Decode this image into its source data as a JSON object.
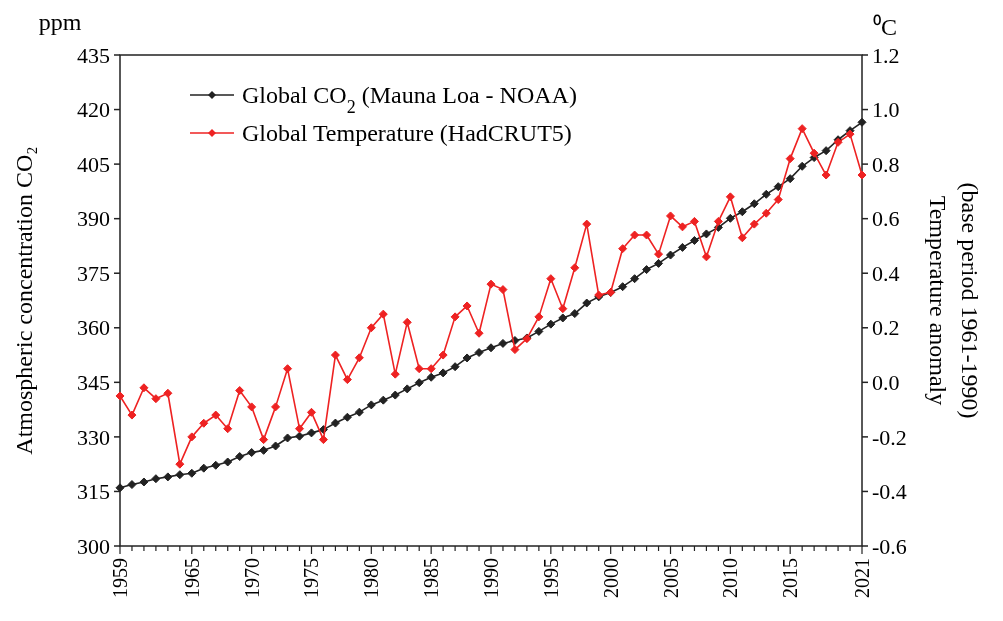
{
  "chart_data": {
    "type": "line",
    "xlabel": null,
    "ylabel": "Atmospheric concentration CO₂",
    "y2label": "Temperature anomaly\n(base period 1961-1990)",
    "annotations": [
      "ppm",
      "⁰C"
    ],
    "x": [
      1959,
      1960,
      1961,
      1962,
      1963,
      1964,
      1965,
      1966,
      1967,
      1968,
      1969,
      1970,
      1971,
      1972,
      1973,
      1974,
      1975,
      1976,
      1977,
      1978,
      1979,
      1980,
      1981,
      1982,
      1983,
      1984,
      1985,
      1986,
      1987,
      1988,
      1989,
      1990,
      1991,
      1992,
      1993,
      1994,
      1995,
      1996,
      1997,
      1998,
      1999,
      2000,
      2001,
      2002,
      2003,
      2004,
      2005,
      2006,
      2007,
      2008,
      2009,
      2010,
      2011,
      2012,
      2013,
      2014,
      2015,
      2016,
      2017,
      2018,
      2019,
      2020,
      2021
    ],
    "series": [
      {
        "name": "Global CO$_{2}$ (Mauna Loa - NOAA)",
        "color": "#222222",
        "values": [
          316.0,
          316.9,
          317.6,
          318.5,
          319.0,
          319.6,
          320.0,
          321.4,
          322.2,
          323.1,
          324.6,
          325.7,
          326.3,
          327.5,
          329.7,
          330.2,
          331.1,
          332.0,
          333.8,
          335.4,
          336.8,
          338.8,
          340.1,
          341.5,
          343.2,
          344.9,
          346.4,
          347.6,
          349.3,
          351.7,
          353.2,
          354.5,
          355.7,
          356.5,
          357.2,
          359.0,
          361.0,
          362.7,
          363.9,
          366.8,
          368.5,
          369.7,
          371.3,
          373.5,
          376.0,
          377.7,
          380.0,
          382.1,
          384.0,
          385.8,
          387.6,
          390.1,
          391.9,
          394.1,
          396.7,
          398.8,
          401.0,
          404.4,
          406.8,
          408.7,
          411.7,
          414.2,
          416.5
        ]
      },
      {
        "name": "Global Temperature (HadCRUT5)",
        "color": "#ee2222",
        "axis": "y2",
        "values": [
          -0.05,
          -0.12,
          -0.02,
          -0.06,
          -0.04,
          -0.3,
          -0.2,
          -0.15,
          -0.12,
          -0.17,
          -0.03,
          -0.09,
          -0.21,
          -0.09,
          0.05,
          -0.17,
          -0.11,
          -0.21,
          0.1,
          0.01,
          0.09,
          0.2,
          0.25,
          0.03,
          0.22,
          0.05,
          0.05,
          0.1,
          0.24,
          0.28,
          0.18,
          0.36,
          0.34,
          0.12,
          0.16,
          0.24,
          0.38,
          0.27,
          0.42,
          0.58,
          0.32,
          0.33,
          0.49,
          0.54,
          0.54,
          0.47,
          0.61,
          0.57,
          0.59,
          0.46,
          0.59,
          0.68,
          0.53,
          0.58,
          0.62,
          0.67,
          0.82,
          0.93,
          0.84,
          0.76,
          0.88,
          0.91,
          0.76
        ]
      }
    ],
    "xlim": [
      1959,
      2021
    ],
    "xticks": [
      1959,
      {
        "value": 1960,
        "label": null
      },
      {
        "value": 1961,
        "label": null
      },
      {
        "value": 1962,
        "label": null
      },
      {
        "value": 1963,
        "label": null
      },
      {
        "value": 1964,
        "label": null
      },
      1965,
      {
        "value": 1966,
        "label": null
      },
      {
        "value": 1967,
        "label": null
      },
      {
        "value": 1968,
        "label": null
      },
      {
        "value": 1969,
        "label": null
      },
      1970,
      {
        "value": 1971,
        "label": null
      },
      {
        "value": 1972,
        "label": null
      },
      {
        "value": 1973,
        "label": null
      },
      {
        "value": 1974,
        "label": null
      },
      1975,
      {
        "value": 1976,
        "label": null
      },
      {
        "value": 1977,
        "label": null
      },
      {
        "value": 1978,
        "label": null
      },
      {
        "value": 1979,
        "label": null
      },
      1980,
      {
        "value": 1981,
        "label": null
      },
      {
        "value": 1982,
        "label": null
      },
      {
        "value": 1983,
        "label": null
      },
      {
        "value": 1984,
        "label": null
      },
      1985,
      {
        "value": 1986,
        "label": null
      },
      {
        "value": 1987,
        "label": null
      },
      {
        "value": 1988,
        "label": null
      },
      {
        "value": 1989,
        "label": null
      },
      1990,
      {
        "value": 1991,
        "label": null
      },
      {
        "value": 1992,
        "label": null
      },
      {
        "value": 1993,
        "label": null
      },
      {
        "value": 1994,
        "label": null
      },
      1995,
      {
        "value": 1996,
        "label": null
      },
      {
        "value": 1997,
        "label": null
      },
      {
        "value": 1998,
        "label": null
      },
      {
        "value": 1999,
        "label": null
      },
      2000,
      {
        "value": 2001,
        "label": null
      },
      {
        "value": 2002,
        "label": null
      },
      {
        "value": 2003,
        "label": null
      },
      {
        "value": 2004,
        "label": null
      },
      2005,
      {
        "value": 2006,
        "label": null
      },
      {
        "value": 2007,
        "label": null
      },
      {
        "value": 2008,
        "label": null
      },
      {
        "value": 2009,
        "label": null
      },
      2010,
      {
        "value": 2011,
        "label": null
      },
      {
        "value": 2012,
        "label": null
      },
      {
        "value": 2013,
        "label": null
      },
      {
        "value": 2014,
        "label": null
      },
      2015,
      {
        "value": 2016,
        "label": null
      },
      {
        "value": 2017,
        "label": null
      },
      {
        "value": 2018,
        "label": null
      },
      {
        "value": 2019,
        "label": null
      },
      {
        "value": 2020,
        "label": null
      },
      2021
    ],
    "ylim": [
      300,
      435
    ],
    "yticks": [
      300,
      315,
      330,
      345,
      360,
      375,
      390,
      405,
      420,
      435
    ],
    "y2lim": [
      -0.6,
      1.2
    ],
    "y2ticks": [
      {
        "value": -0.6,
        "label": "-0.6"
      },
      {
        "value": -0.4,
        "label": "-0.4"
      },
      {
        "value": -0.2,
        "label": "-0.2"
      },
      {
        "value": 0,
        "label": "0.0"
      },
      {
        "value": 0.2,
        "label": "0.2"
      },
      {
        "value": 0.4,
        "label": "0.4"
      },
      {
        "value": 0.6,
        "label": "0.6"
      },
      {
        "value": 0.8,
        "label": "0.8"
      },
      {
        "value": 1.0,
        "label": "1.0"
      },
      {
        "value": 1.2,
        "label": "1.2"
      }
    ],
    "marker": "diamond",
    "line_style": "solid",
    "legend": "top left",
    "grid": false
  }
}
